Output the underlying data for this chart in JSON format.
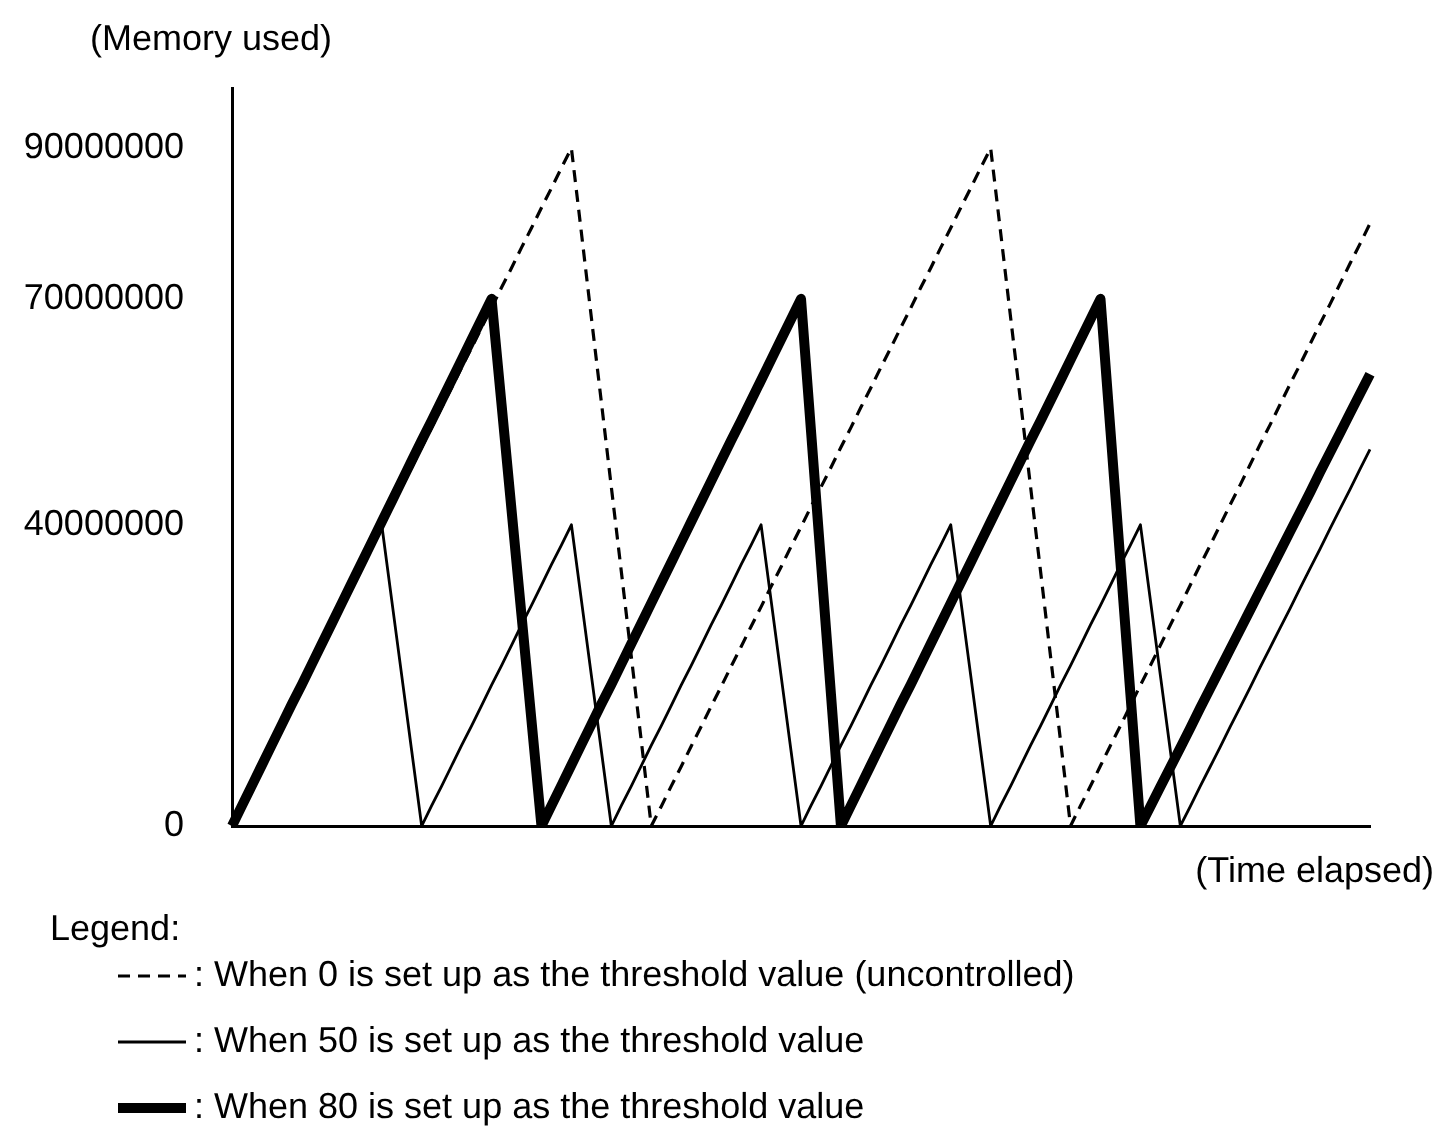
{
  "chart_data": {
    "type": "line",
    "ylabel": "(Memory used)",
    "xlabel": "(Time elapsed)",
    "legend_title": "Legend:",
    "legend": "bottom",
    "grid": false,
    "marker": "none",
    "tick_labels": "y",
    "categories": [
      null,
      null,
      null,
      null,
      null,
      null,
      null,
      null,
      null,
      null,
      null,
      null,
      null,
      null,
      null,
      null,
      null,
      null,
      null,
      null,
      null,
      null,
      null,
      null,
      null,
      null,
      null,
      null,
      null,
      null,
      null,
      null,
      null,
      null,
      null,
      null,
      null,
      null,
      null,
      null,
      null,
      null,
      null,
      null,
      null,
      null,
      null,
      null,
      null,
      null,
      null,
      null,
      null,
      null,
      null,
      null,
      null,
      null,
      null,
      null,
      null,
      null,
      null,
      null,
      null,
      null,
      null,
      null,
      null,
      null,
      null,
      null,
      null,
      null,
      null,
      null,
      null,
      null,
      null,
      null,
      null,
      null,
      null,
      null,
      null,
      null,
      null,
      null,
      null,
      null,
      null,
      null,
      null,
      null,
      null,
      null,
      null,
      null,
      null,
      null,
      null,
      null,
      null,
      null,
      null,
      null,
      null,
      null,
      null,
      null,
      null,
      null,
      null,
      null,
      null
    ],
    "ylim": [
      0,
      98000000
    ],
    "yticks": [
      0,
      40000000,
      70000000,
      90000000
    ],
    "series": [
      {
        "name": ": When 0 is set up as the threshold value (uncontrolled)",
        "color": "#000000",
        "line_style": "dashed",
        "values": [
          0,
          2600000,
          5300000,
          7900000,
          10600000,
          13200000,
          15900000,
          18500000,
          21200000,
          23800000,
          26500000,
          29100000,
          31800000,
          34400000,
          37100000,
          39700000,
          42400000,
          45000000,
          47600000,
          50300000,
          52900000,
          55600000,
          58200000,
          60900000,
          63500000,
          66200000,
          68800000,
          71500000,
          74100000,
          76800000,
          79400000,
          82100000,
          84700000,
          87400000,
          90000000,
          78800000,
          67500000,
          56300000,
          45000000,
          33800000,
          22500000,
          11300000,
          0,
          2600000,
          5300000,
          7900000,
          10600000,
          13200000,
          15900000,
          18500000,
          21200000,
          23800000,
          26500000,
          29100000,
          31800000,
          34400000,
          37100000,
          39700000,
          42400000,
          45000000,
          47600000,
          50300000,
          52900000,
          55600000,
          58200000,
          60900000,
          63500000,
          66200000,
          68800000,
          71500000,
          74100000,
          76800000,
          79400000,
          82100000,
          84700000,
          87400000,
          90000000,
          78800000,
          67500000,
          56300000,
          45000000,
          33800000,
          22500000,
          11300000,
          0,
          2700000,
          5300000,
          8000000,
          10700000,
          13300000,
          16000000,
          18700000,
          21300000,
          24000000,
          26700000,
          29300000,
          32000000,
          34700000,
          37300000,
          40000000,
          42700000,
          45300000,
          48000000,
          50700000,
          53300000,
          56000000,
          58700000,
          61300000,
          64000000,
          66700000,
          69300000,
          72000000,
          74700000,
          77300000,
          80000000
        ]
      },
      {
        "name": ": When 50 is set up as the threshold value",
        "color": "#000000",
        "line_style": "solid",
        "values": [
          0,
          2700000,
          5300000,
          8000000,
          10700000,
          13300000,
          16000000,
          18700000,
          21300000,
          24000000,
          26700000,
          29300000,
          32000000,
          34700000,
          37300000,
          40000000,
          30000000,
          20000000,
          10000000,
          0,
          2700000,
          5300000,
          8000000,
          10700000,
          13300000,
          16000000,
          18700000,
          21300000,
          24000000,
          26700000,
          29300000,
          32000000,
          34700000,
          37300000,
          40000000,
          30000000,
          20000000,
          10000000,
          0,
          2700000,
          5300000,
          8000000,
          10700000,
          13300000,
          16000000,
          18700000,
          21300000,
          24000000,
          26700000,
          29300000,
          32000000,
          34700000,
          37300000,
          40000000,
          30000000,
          20000000,
          10000000,
          0,
          2700000,
          5300000,
          8000000,
          10700000,
          13300000,
          16000000,
          18700000,
          21300000,
          24000000,
          26700000,
          29300000,
          32000000,
          34700000,
          37300000,
          40000000,
          30000000,
          20000000,
          10000000,
          0,
          2700000,
          5300000,
          8000000,
          10700000,
          13300000,
          16000000,
          18700000,
          21300000,
          24000000,
          26700000,
          29300000,
          32000000,
          34700000,
          37300000,
          40000000,
          30000000,
          20000000,
          10000000,
          0,
          2600000,
          5300000,
          7900000,
          10500000,
          13200000,
          15800000,
          18400000,
          21100000,
          23700000,
          26300000,
          28900000,
          31600000,
          34200000,
          36800000,
          39500000,
          42100000,
          44700000,
          47400000,
          50000000
        ]
      },
      {
        "name": ": When 80 is set up as the threshold value",
        "color": "#000000",
        "line_style": "solid",
        "values": [
          0,
          2700000,
          5400000,
          8100000,
          10800000,
          13500000,
          16200000,
          18800000,
          21500000,
          24200000,
          26900000,
          29600000,
          32300000,
          35000000,
          37700000,
          40400000,
          43100000,
          45800000,
          48500000,
          51200000,
          53800000,
          56500000,
          59200000,
          61900000,
          64600000,
          67300000,
          70000000,
          56000000,
          42000000,
          28000000,
          14000000,
          0,
          2700000,
          5400000,
          8100000,
          10800000,
          13500000,
          16200000,
          18800000,
          21500000,
          24200000,
          26900000,
          29600000,
          32300000,
          35000000,
          37700000,
          40400000,
          43100000,
          45800000,
          48500000,
          51200000,
          53800000,
          56500000,
          59200000,
          61900000,
          64600000,
          67300000,
          70000000,
          52500000,
          35000000,
          17500000,
          0,
          2700000,
          5400000,
          8100000,
          10800000,
          13500000,
          16200000,
          18800000,
          21500000,
          24200000,
          26900000,
          29600000,
          32300000,
          35000000,
          37700000,
          40400000,
          43100000,
          45800000,
          48500000,
          51200000,
          53800000,
          56500000,
          59200000,
          61900000,
          64600000,
          67300000,
          70000000,
          52500000,
          35000000,
          17500000,
          0,
          2600000,
          5200000,
          7800000,
          10400000,
          13000000,
          15700000,
          18300000,
          20900000,
          23500000,
          26100000,
          28700000,
          31300000,
          33900000,
          36500000,
          39100000,
          41700000,
          44300000,
          47000000,
          49600000,
          52200000,
          54800000,
          57400000,
          60000000
        ]
      }
    ]
  }
}
